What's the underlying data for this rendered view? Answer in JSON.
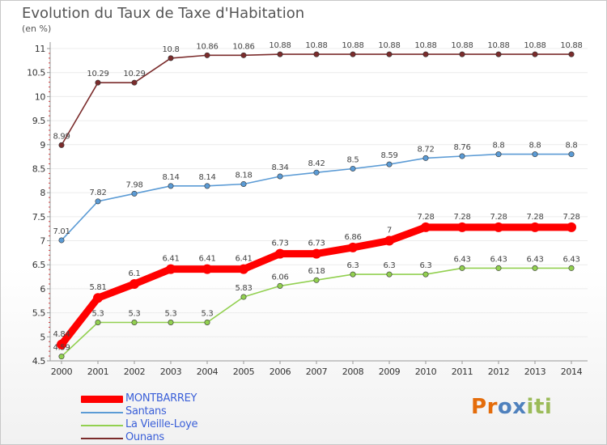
{
  "header": {
    "title": "Evolution du Taux de Taxe d'Habitation",
    "unit": "(en %)"
  },
  "chart_data": {
    "type": "line",
    "title": "Evolution du Taux de Taxe d'Habitation",
    "ylabel": "(en %)",
    "xlabel": "",
    "x": [
      2000,
      2001,
      2002,
      2003,
      2004,
      2005,
      2006,
      2007,
      2008,
      2009,
      2010,
      2011,
      2012,
      2013,
      2014
    ],
    "x_labels": [
      "2000",
      "2001",
      "2002",
      "2003",
      "2004",
      "2005",
      "2006",
      "2007",
      "2008",
      "2009",
      "2010",
      "2011",
      "2012",
      "2013",
      "2014"
    ],
    "ylim": [
      4.5,
      11
    ],
    "y_ticks": [
      4.5,
      5,
      5.5,
      6,
      6.5,
      7,
      7.5,
      8,
      8.5,
      9,
      9.5,
      10,
      10.5,
      11
    ],
    "y_tick_labels": [
      "4.5",
      "5",
      "5.5",
      "6",
      "6.5",
      "7",
      "7.5",
      "8",
      "8.5",
      "9",
      "9.5",
      "10",
      "10.5",
      "11"
    ],
    "series": [
      {
        "name": "MONTBARREY",
        "color": "#ff0000",
        "values": [
          4.84,
          5.81,
          6.1,
          6.41,
          6.41,
          6.41,
          6.73,
          6.73,
          6.86,
          7,
          7.28,
          7.28,
          7.28,
          7.28,
          7.28
        ],
        "labels": [
          "4.84",
          "5.81",
          "6.1",
          "6.41",
          "6.41",
          "6.41",
          "6.73",
          "6.73",
          "6.86",
          "7",
          "7.28",
          "7.28",
          "7.28",
          "7.28",
          "7.28"
        ]
      },
      {
        "name": "Santans",
        "color": "#5b9bd5",
        "values": [
          7.01,
          7.82,
          7.98,
          8.14,
          8.14,
          8.18,
          8.34,
          8.42,
          8.5,
          8.59,
          8.72,
          8.76,
          8.8,
          8.8,
          8.8
        ],
        "labels": [
          "7.01",
          "7.82",
          "7.98",
          "8.14",
          "8.14",
          "8.18",
          "8.34",
          "8.42",
          "8.5",
          "8.59",
          "8.72",
          "8.76",
          "8.8",
          "8.8",
          "8.8"
        ]
      },
      {
        "name": "La Vieille-Loye",
        "color": "#92d050",
        "values": [
          4.59,
          5.3,
          5.3,
          5.3,
          5.3,
          5.83,
          6.06,
          6.18,
          6.3,
          6.3,
          6.3,
          6.43,
          6.43,
          6.43,
          6.43
        ],
        "labels": [
          "4.59",
          "5.3",
          "5.3",
          "5.3",
          "5.3",
          "5.83",
          "6.06",
          "6.18",
          "6.3",
          "6.3",
          "6.3",
          "6.43",
          "6.43",
          "6.43",
          "6.43"
        ]
      },
      {
        "name": "Ounans",
        "color": "#7b2c2c",
        "values": [
          8.99,
          10.29,
          10.29,
          10.8,
          10.86,
          10.86,
          10.88,
          10.88,
          10.88,
          10.88,
          10.88,
          10.88,
          10.88,
          10.88,
          10.88
        ],
        "labels": [
          "8.99",
          "10.29",
          "10.29",
          "10.8",
          "10.86",
          "10.86",
          "10.88",
          "10.88",
          "10.88",
          "10.88",
          "10.88",
          "10.88",
          "10.88",
          "10.88",
          "10.88"
        ]
      }
    ],
    "legend_position": "bottom-left"
  },
  "logo": {
    "letters": [
      "P",
      "r",
      "o",
      "x",
      "i",
      "t",
      "i"
    ],
    "colors": [
      "#e46c0a",
      "#e46c0a",
      "#4f81bd",
      "#4f81bd",
      "#9bbb59",
      "#9bbb59",
      "#9bbb59"
    ]
  }
}
